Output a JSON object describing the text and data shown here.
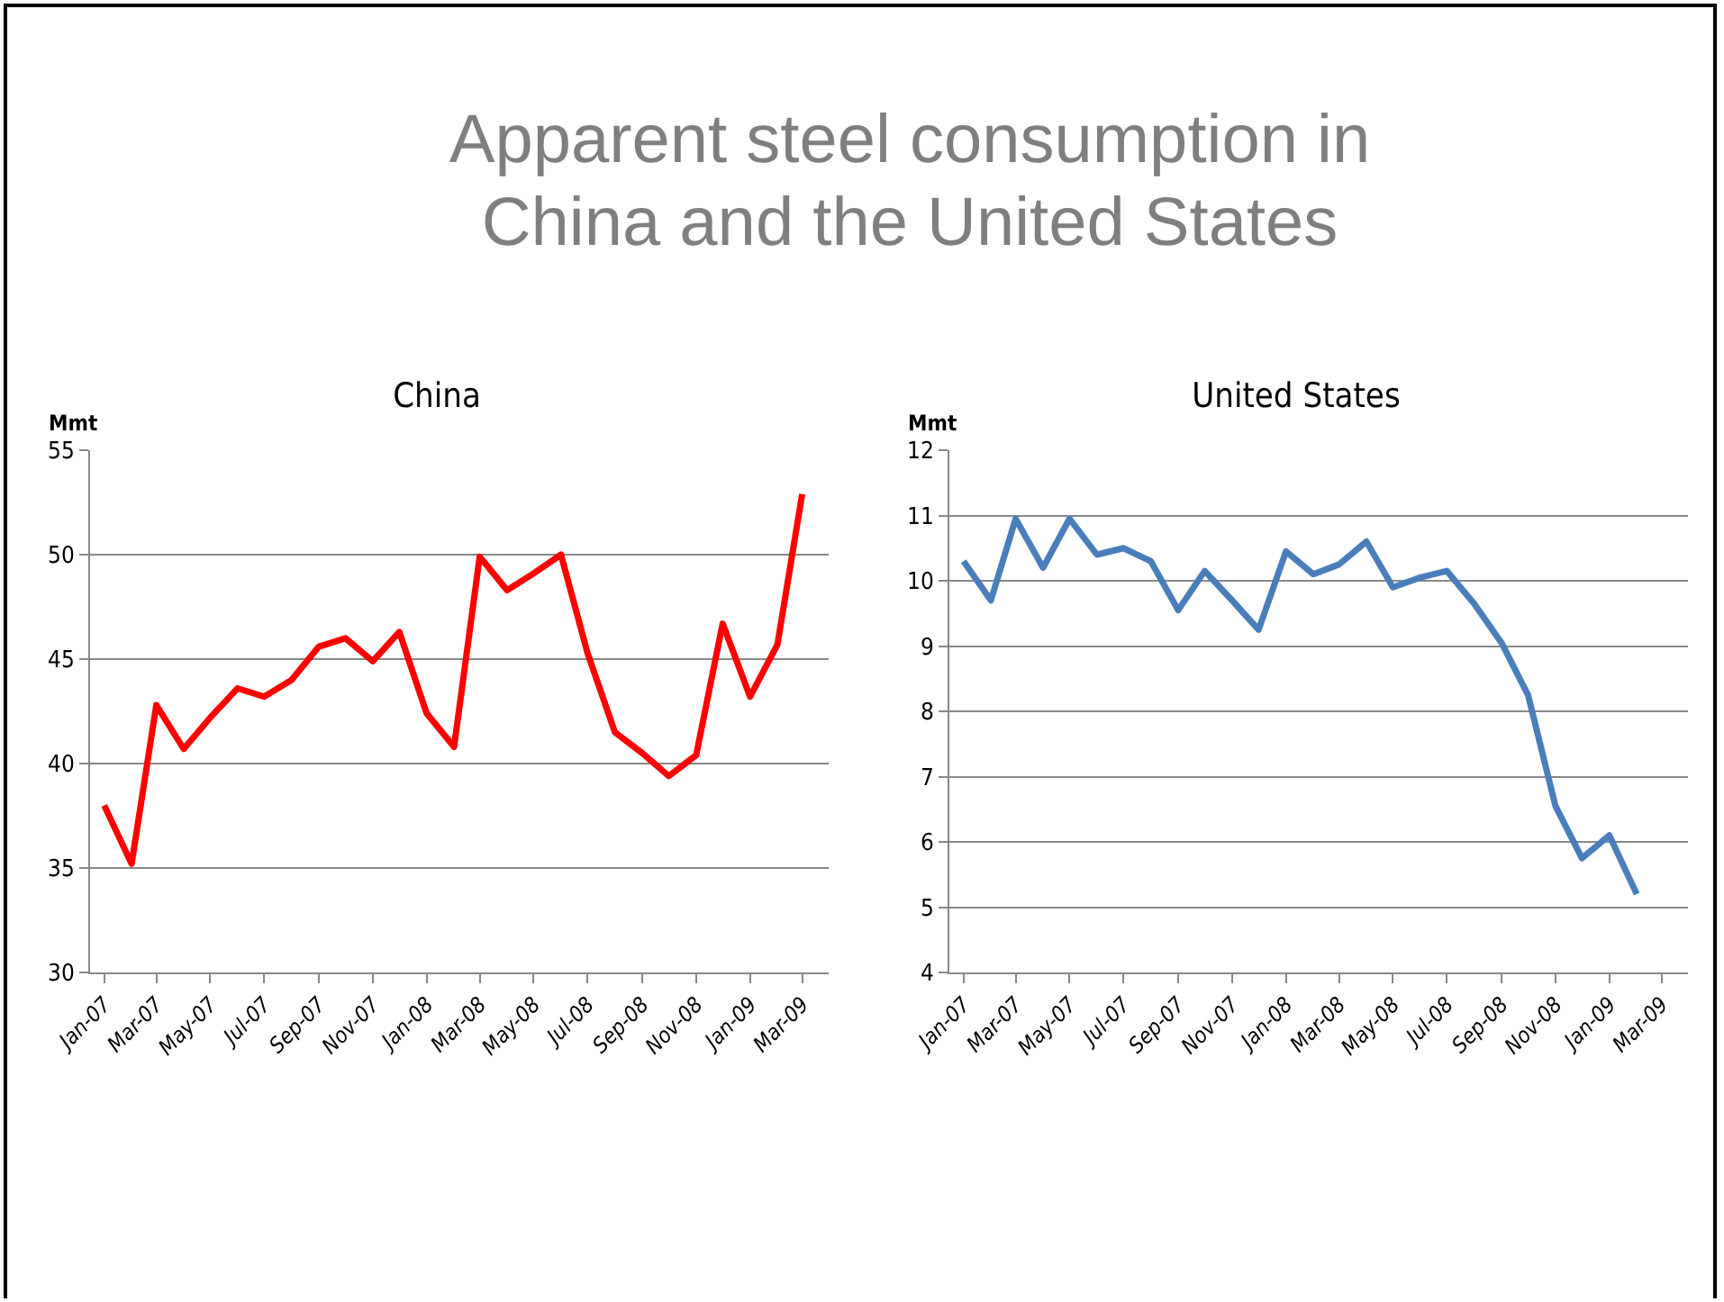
{
  "chart_data": [
    {
      "type": "other",
      "title": "Apparent steel consumption in China and the United States"
    },
    {
      "type": "line",
      "title": "China",
      "ylabel": "Mmt",
      "x": [
        "2007-01",
        "2007-02",
        "2007-03",
        "2007-04",
        "2007-05",
        "2007-06",
        "2007-07",
        "2007-08",
        "2007-09",
        "2007-10",
        "2007-11",
        "2007-12",
        "2008-01",
        "2008-02",
        "2008-03",
        "2008-04",
        "2008-05",
        "2008-06",
        "2008-07",
        "2008-08",
        "2008-09",
        "2008-10",
        "2008-11",
        "2008-12",
        "2009-01",
        "2009-02",
        "2009-03"
      ],
      "series": [
        {
          "color": "#ff0000",
          "values": [
            38,
            35.2,
            42.8,
            40.7,
            42.2,
            43.6,
            43.2,
            44,
            45.6,
            46,
            44.9,
            46.3,
            42.4,
            40.8,
            49.9,
            48.3,
            49.1,
            50,
            45.3,
            41.5,
            40.5,
            39.4,
            40.4,
            46.7,
            43.2,
            45.7,
            52.9
          ]
        }
      ],
      "xlim": [
        "2006-12-16",
        "2009-03-31"
      ],
      "xticks": [
        {
          "value": "2007-01",
          "label": "Jan-07"
        },
        {
          "value": "2007-03",
          "label": "Mar-07"
        },
        {
          "value": "2007-05",
          "label": "May-07"
        },
        {
          "value": "2007-07",
          "label": "Jul-07"
        },
        {
          "value": "2007-09",
          "label": "Sep-07"
        },
        {
          "value": "2007-11",
          "label": "Nov-07"
        },
        {
          "value": "2008-01",
          "label": "Jan-08"
        },
        {
          "value": "2008-03",
          "label": "Mar-08"
        },
        {
          "value": "2008-05",
          "label": "May-08"
        },
        {
          "value": "2008-07",
          "label": "Jul-08"
        },
        {
          "value": "2008-09",
          "label": "Sep-08"
        },
        {
          "value": "2008-11",
          "label": "Nov-08"
        },
        {
          "value": "2009-01",
          "label": "Jan-09"
        },
        {
          "value": "2009-03",
          "label": "Mar-09"
        }
      ],
      "ylim": [
        30,
        55
      ],
      "yticks": [
        30,
        35,
        40,
        45,
        50,
        55
      ],
      "grid": "y",
      "line_style": "solid"
    },
    {
      "type": "line",
      "title": "United States",
      "ylabel": "Mmt",
      "x": [
        "2007-01",
        "2007-02",
        "2007-03",
        "2007-04",
        "2007-05",
        "2007-06",
        "2007-07",
        "2007-08",
        "2007-09",
        "2007-10",
        "2007-11",
        "2007-12",
        "2008-01",
        "2008-02",
        "2008-03",
        "2008-04",
        "2008-05",
        "2008-06",
        "2008-07",
        "2008-08",
        "2008-09",
        "2008-10",
        "2008-11",
        "2008-12",
        "2009-01",
        "2009-02"
      ],
      "series": [
        {
          "color": "#4a7ebb",
          "values": [
            10.3,
            9.7,
            10.95,
            10.2,
            10.95,
            10.4,
            10.5,
            10.3,
            9.55,
            10.15,
            9.7,
            9.25,
            10.45,
            10.1,
            10.25,
            10.6,
            9.9,
            10.05,
            10.15,
            9.65,
            9.05,
            8.25,
            6.55,
            5.75,
            6.1,
            5.2
          ]
        }
      ],
      "xlim": [
        "2006-12-16",
        "2009-03-31"
      ],
      "xticks": [
        {
          "value": "2007-01",
          "label": "Jan-07"
        },
        {
          "value": "2007-03",
          "label": "Mar-07"
        },
        {
          "value": "2007-05",
          "label": "May-07"
        },
        {
          "value": "2007-07",
          "label": "Jul-07"
        },
        {
          "value": "2007-09",
          "label": "Sep-07"
        },
        {
          "value": "2007-11",
          "label": "Nov-07"
        },
        {
          "value": "2008-01",
          "label": "Jan-08"
        },
        {
          "value": "2008-03",
          "label": "Mar-08"
        },
        {
          "value": "2008-05",
          "label": "May-08"
        },
        {
          "value": "2008-07",
          "label": "Jul-08"
        },
        {
          "value": "2008-09",
          "label": "Sep-08"
        },
        {
          "value": "2008-11",
          "label": "Nov-08"
        },
        {
          "value": "2009-01",
          "label": "Jan-09"
        },
        {
          "value": "2009-03",
          "label": "Mar-09"
        }
      ],
      "ylim": [
        4,
        12
      ],
      "yticks": [
        4,
        5,
        6,
        7,
        8,
        9,
        10,
        11,
        12
      ],
      "grid": "y",
      "line_style": "solid"
    }
  ]
}
